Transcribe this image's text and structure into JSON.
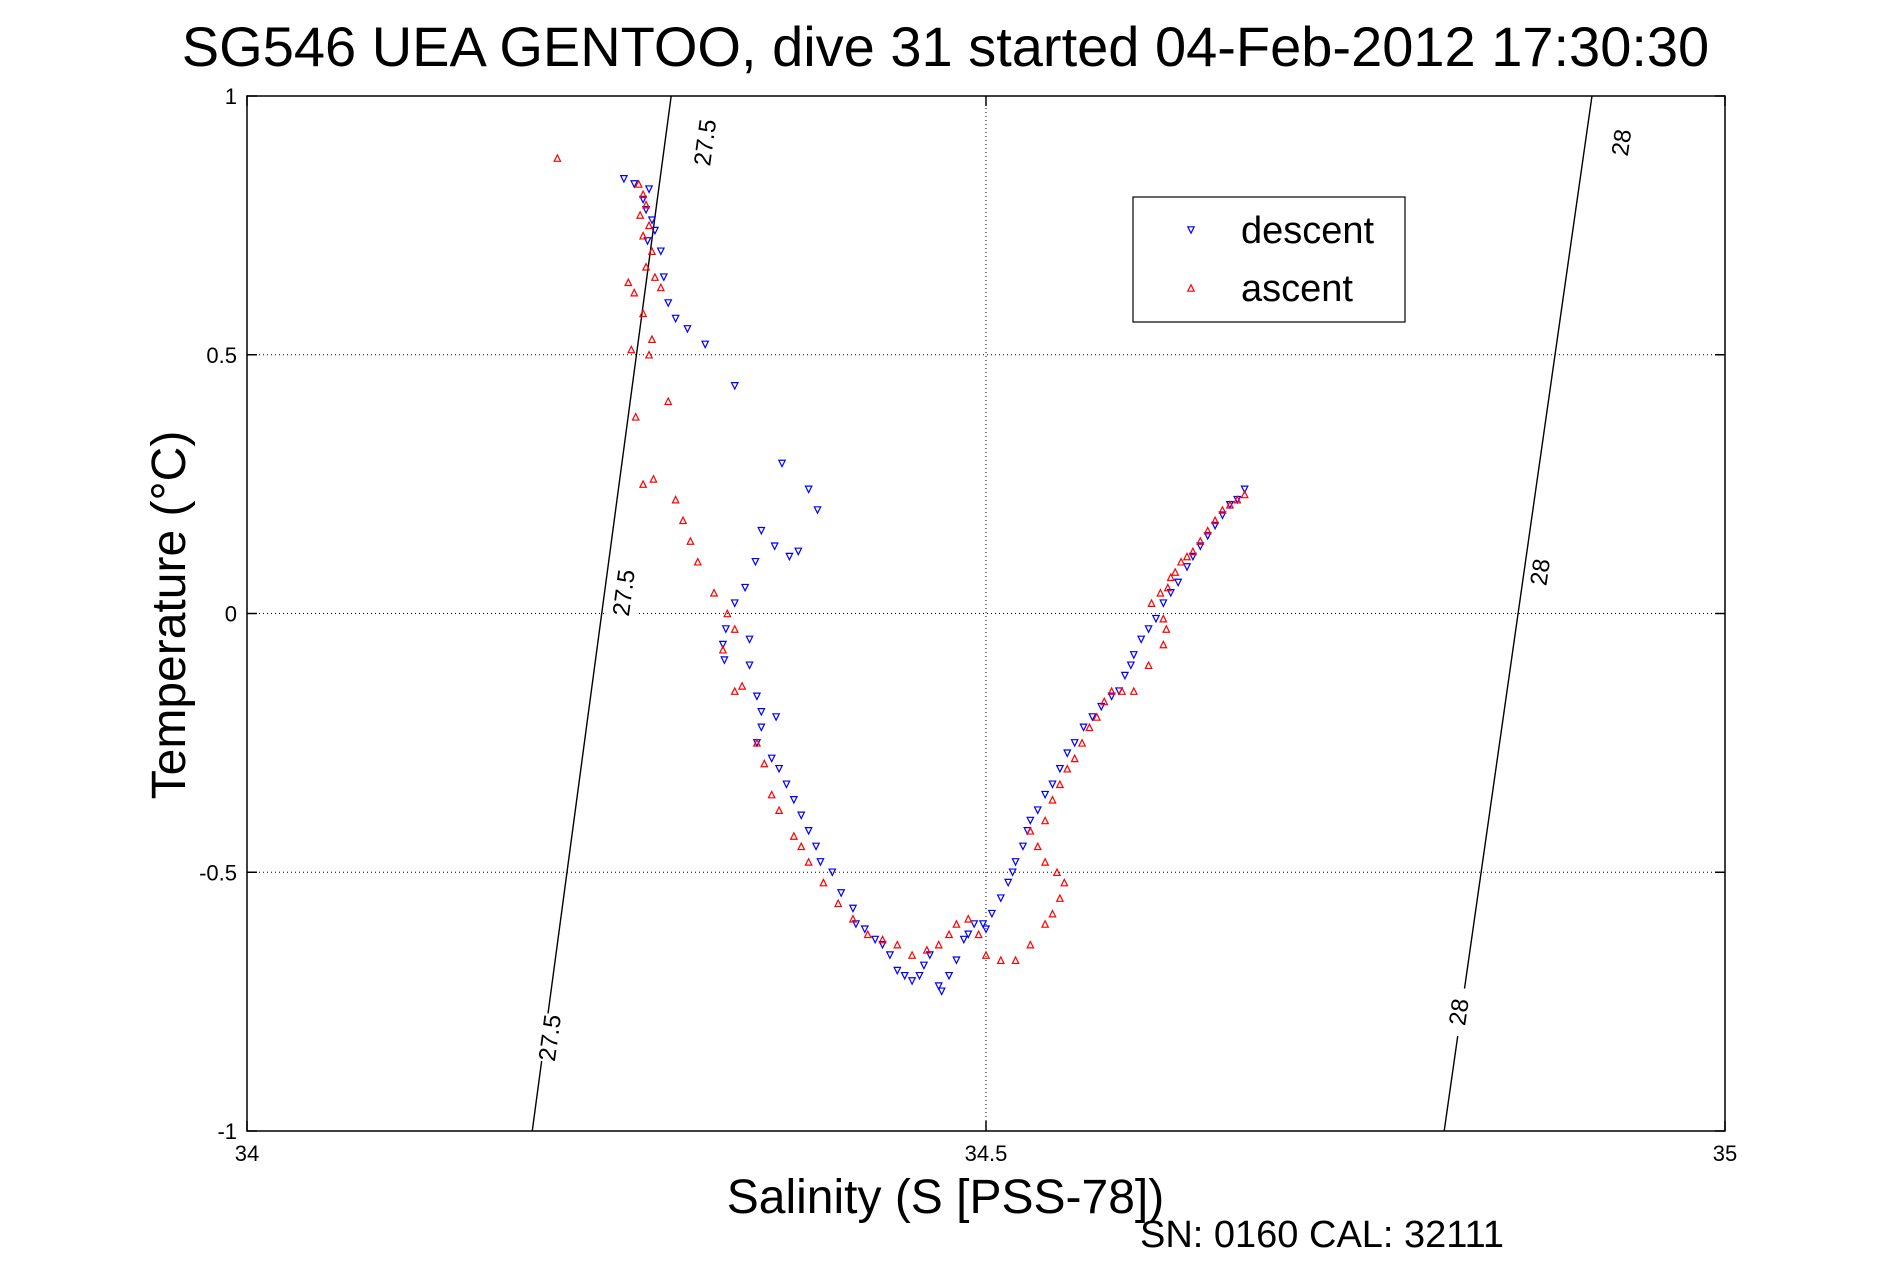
{
  "chart_data": {
    "type": "scatter",
    "title": "SG546 UEA GENTOO, dive 31 started 04-Feb-2012 17:30:30",
    "xlabel": "Salinity (S [PSS-78])",
    "ylabel": "Temperature (°C)",
    "xlim": [
      34,
      35
    ],
    "ylim": [
      -1,
      1
    ],
    "xticks": [
      "34",
      "34.5",
      "35"
    ],
    "xtick_values": [
      34,
      34.5,
      35
    ],
    "yticks": [
      "-1",
      "-0.5",
      "0",
      "0.5",
      "1"
    ],
    "ytick_values": [
      -1,
      -0.5,
      0,
      0.5,
      1
    ],
    "grid": true,
    "legend_position": "top-right",
    "footer": "SN: 0160  CAL: 32111",
    "isopycnals": [
      {
        "label": "27.5",
        "x": [
          34.193,
          34.287
        ],
        "y": [
          -1,
          1
        ],
        "label_positions": [
          [
            34.205,
            -0.82
          ],
          [
            34.255,
            0.04
          ],
          [
            34.31,
            0.91
          ]
        ]
      },
      {
        "label": "28",
        "x": [
          34.81,
          34.91
        ],
        "y": [
          -1,
          1
        ],
        "label_positions": [
          [
            34.82,
            -0.77
          ],
          [
            34.875,
            0.08
          ],
          [
            34.93,
            0.91
          ]
        ]
      }
    ],
    "series": [
      {
        "name": "descent",
        "color": "#0000ff",
        "marker": "triangle-down",
        "x": [
          34.255,
          34.262,
          34.272,
          34.268,
          34.27,
          34.274,
          34.276,
          34.271,
          34.28,
          34.282,
          34.285,
          34.29,
          34.298,
          34.31,
          34.33,
          34.362,
          34.38,
          34.386,
          34.348,
          34.357,
          34.373,
          34.367,
          34.344,
          34.337,
          34.33,
          34.324,
          34.322,
          34.323,
          34.34,
          34.34,
          34.345,
          34.348,
          34.358,
          34.348,
          34.345,
          34.355,
          34.36,
          34.365,
          34.37,
          34.375,
          34.38,
          34.385,
          34.388,
          34.396,
          34.402,
          34.41,
          34.412,
          34.418,
          34.425,
          34.43,
          34.435,
          34.44,
          34.445,
          34.45,
          34.455,
          34.458,
          34.462,
          34.468,
          34.47,
          34.475,
          34.48,
          34.485,
          34.488,
          34.492,
          34.498,
          34.5,
          34.504,
          34.51,
          34.515,
          34.518,
          34.52,
          34.525,
          34.528,
          34.53,
          34.535,
          34.54,
          34.545,
          34.55,
          34.555,
          34.56,
          34.566,
          34.572,
          34.578,
          34.585,
          34.59,
          34.594,
          34.598,
          34.6,
          34.605,
          34.61,
          34.615,
          34.62,
          34.625,
          34.63,
          34.636,
          34.64,
          34.645,
          34.65,
          34.655,
          34.66,
          34.665,
          34.67,
          34.675
        ],
        "y": [
          0.84,
          0.83,
          0.82,
          0.8,
          0.78,
          0.76,
          0.74,
          0.72,
          0.7,
          0.65,
          0.6,
          0.57,
          0.55,
          0.52,
          0.44,
          0.29,
          0.24,
          0.2,
          0.16,
          0.13,
          0.12,
          0.11,
          0.1,
          0.05,
          0.02,
          -0.03,
          -0.06,
          -0.09,
          -0.05,
          -0.1,
          -0.16,
          -0.19,
          -0.2,
          -0.22,
          -0.25,
          -0.28,
          -0.3,
          -0.33,
          -0.36,
          -0.39,
          -0.42,
          -0.45,
          -0.48,
          -0.5,
          -0.54,
          -0.57,
          -0.6,
          -0.61,
          -0.63,
          -0.64,
          -0.66,
          -0.69,
          -0.7,
          -0.71,
          -0.7,
          -0.68,
          -0.66,
          -0.72,
          -0.73,
          -0.7,
          -0.67,
          -0.63,
          -0.62,
          -0.6,
          -0.6,
          -0.61,
          -0.58,
          -0.55,
          -0.52,
          -0.5,
          -0.48,
          -0.45,
          -0.42,
          -0.4,
          -0.38,
          -0.35,
          -0.33,
          -0.3,
          -0.27,
          -0.25,
          -0.22,
          -0.2,
          -0.18,
          -0.16,
          -0.15,
          -0.12,
          -0.1,
          -0.08,
          -0.05,
          -0.03,
          -0.01,
          0.02,
          0.04,
          0.06,
          0.09,
          0.11,
          0.13,
          0.15,
          0.17,
          0.19,
          0.21,
          0.22,
          0.24
        ]
      },
      {
        "name": "ascent",
        "color": "#ff0000",
        "marker": "triangle-up",
        "x": [
          34.21,
          34.265,
          34.268,
          34.27,
          34.266,
          34.272,
          34.268,
          34.274,
          34.27,
          34.276,
          34.28,
          34.258,
          34.262,
          34.268,
          34.274,
          34.26,
          34.272,
          34.263,
          34.285,
          34.275,
          34.268,
          34.29,
          34.295,
          34.3,
          34.305,
          34.316,
          34.325,
          34.33,
          34.322,
          34.335,
          34.33,
          34.345,
          34.35,
          34.355,
          34.36,
          34.37,
          34.375,
          34.38,
          34.39,
          34.4,
          34.41,
          34.42,
          34.43,
          34.44,
          34.45,
          34.46,
          34.468,
          34.475,
          34.48,
          34.488,
          34.495,
          34.5,
          34.51,
          34.52,
          34.53,
          34.54,
          34.545,
          34.55,
          34.553,
          34.548,
          34.54,
          34.535,
          34.53,
          34.54,
          34.545,
          34.55,
          34.555,
          34.56,
          34.565,
          34.57,
          34.575,
          34.58,
          34.585,
          34.592,
          34.6,
          34.61,
          34.62,
          34.622,
          34.62,
          34.612,
          34.618,
          34.623,
          34.625,
          34.628,
          34.632,
          34.636,
          34.64,
          34.645,
          34.65,
          34.655,
          34.66,
          34.665,
          34.67,
          34.675
        ],
        "y": [
          0.88,
          0.83,
          0.81,
          0.79,
          0.77,
          0.75,
          0.73,
          0.7,
          0.67,
          0.65,
          0.63,
          0.64,
          0.62,
          0.58,
          0.53,
          0.51,
          0.5,
          0.38,
          0.41,
          0.26,
          0.25,
          0.22,
          0.18,
          0.14,
          0.1,
          0.04,
          0.0,
          -0.03,
          -0.07,
          -0.14,
          -0.15,
          -0.25,
          -0.29,
          -0.35,
          -0.38,
          -0.43,
          -0.45,
          -0.48,
          -0.52,
          -0.56,
          -0.59,
          -0.62,
          -0.63,
          -0.64,
          -0.66,
          -0.65,
          -0.64,
          -0.62,
          -0.6,
          -0.59,
          -0.62,
          -0.66,
          -0.67,
          -0.67,
          -0.64,
          -0.6,
          -0.58,
          -0.55,
          -0.52,
          -0.5,
          -0.48,
          -0.45,
          -0.42,
          -0.4,
          -0.36,
          -0.33,
          -0.3,
          -0.28,
          -0.25,
          -0.22,
          -0.2,
          -0.17,
          -0.15,
          -0.15,
          -0.15,
          -0.1,
          -0.06,
          -0.03,
          -0.01,
          0.02,
          0.04,
          0.05,
          0.07,
          0.08,
          0.1,
          0.11,
          0.12,
          0.14,
          0.16,
          0.18,
          0.2,
          0.21,
          0.22,
          0.23
        ]
      }
    ]
  }
}
